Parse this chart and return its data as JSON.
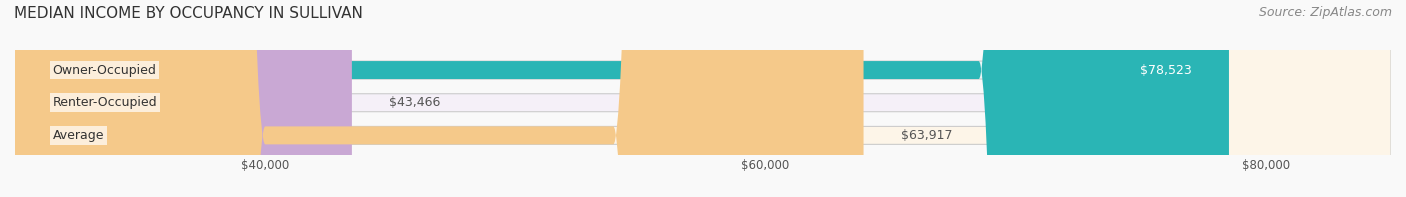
{
  "title": "MEDIAN INCOME BY OCCUPANCY IN SULLIVAN",
  "source": "Source: ZipAtlas.com",
  "categories": [
    "Owner-Occupied",
    "Renter-Occupied",
    "Average"
  ],
  "values": [
    78523,
    43466,
    63917
  ],
  "labels": [
    "$78,523",
    "$43,466",
    "$63,917"
  ],
  "bar_colors": [
    "#2ab5b5",
    "#c9a8d4",
    "#f5c98a"
  ],
  "bar_bg_colors": [
    "#e8f7f7",
    "#f5f0f8",
    "#fdf5e8"
  ],
  "xlim": [
    30000,
    85000
  ],
  "xticks": [
    40000,
    60000,
    80000
  ],
  "xticklabels": [
    "$40,000",
    "$60,000",
    "$80,000"
  ],
  "title_fontsize": 11,
  "source_fontsize": 9,
  "label_fontsize": 9,
  "cat_fontsize": 9,
  "background_color": "#f9f9f9"
}
